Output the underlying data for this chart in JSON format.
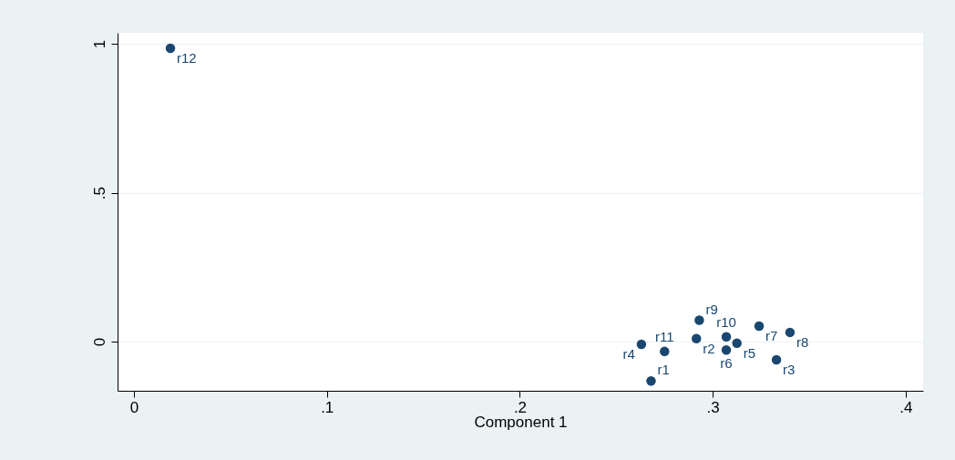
{
  "chart_data": {
    "type": "scatter",
    "xlabel": "Component 1",
    "x": [
      0.268,
      0.2915,
      0.333,
      0.263,
      0.3125,
      0.307,
      0.324,
      0.34,
      0.293,
      0.307,
      0.275,
      0.0189
    ],
    "series": [
      {
        "color": "#1a476f",
        "values": [
          -0.132,
          0.01,
          -0.061,
          -0.009,
          -0.005,
          -0.028,
          0.052,
          0.031,
          0.072,
          0.016,
          -0.033,
          0.985
        ]
      }
    ],
    "marker": "circle",
    "annotations": [
      {
        "text": "r1",
        "x": 0.268,
        "y": -0.132
      },
      {
        "text": "r2",
        "x": 0.2915,
        "y": 0.01
      },
      {
        "text": "r3",
        "x": 0.333,
        "y": -0.061
      },
      {
        "text": "r4",
        "x": 0.263,
        "y": -0.009
      },
      {
        "text": "r5",
        "x": 0.3125,
        "y": -0.005
      },
      {
        "text": "r6",
        "x": 0.307,
        "y": -0.028
      },
      {
        "text": "r7",
        "x": 0.324,
        "y": 0.052
      },
      {
        "text": "r8",
        "x": 0.34,
        "y": 0.031
      },
      {
        "text": "r9",
        "x": 0.293,
        "y": 0.072
      },
      {
        "text": "r10",
        "x": 0.307,
        "y": 0.016
      },
      {
        "text": "r11",
        "x": 0.275,
        "y": -0.033
      },
      {
        "text": "r12",
        "x": 0.0189,
        "y": 0.985
      }
    ],
    "xlim": [
      -0.0085,
      0.409
    ],
    "ylim": [
      -0.165,
      1.037
    ],
    "xticks": [
      0,
      {
        "value": 0.1,
        "label": ".1"
      },
      {
        "value": 0.2,
        "label": ".2"
      },
      {
        "value": 0.3,
        "label": ".3"
      },
      {
        "value": 0.4,
        "label": ".4"
      }
    ],
    "yticks": [
      0,
      {
        "value": 0.5,
        "label": ".5"
      },
      1
    ],
    "grid": "y"
  }
}
